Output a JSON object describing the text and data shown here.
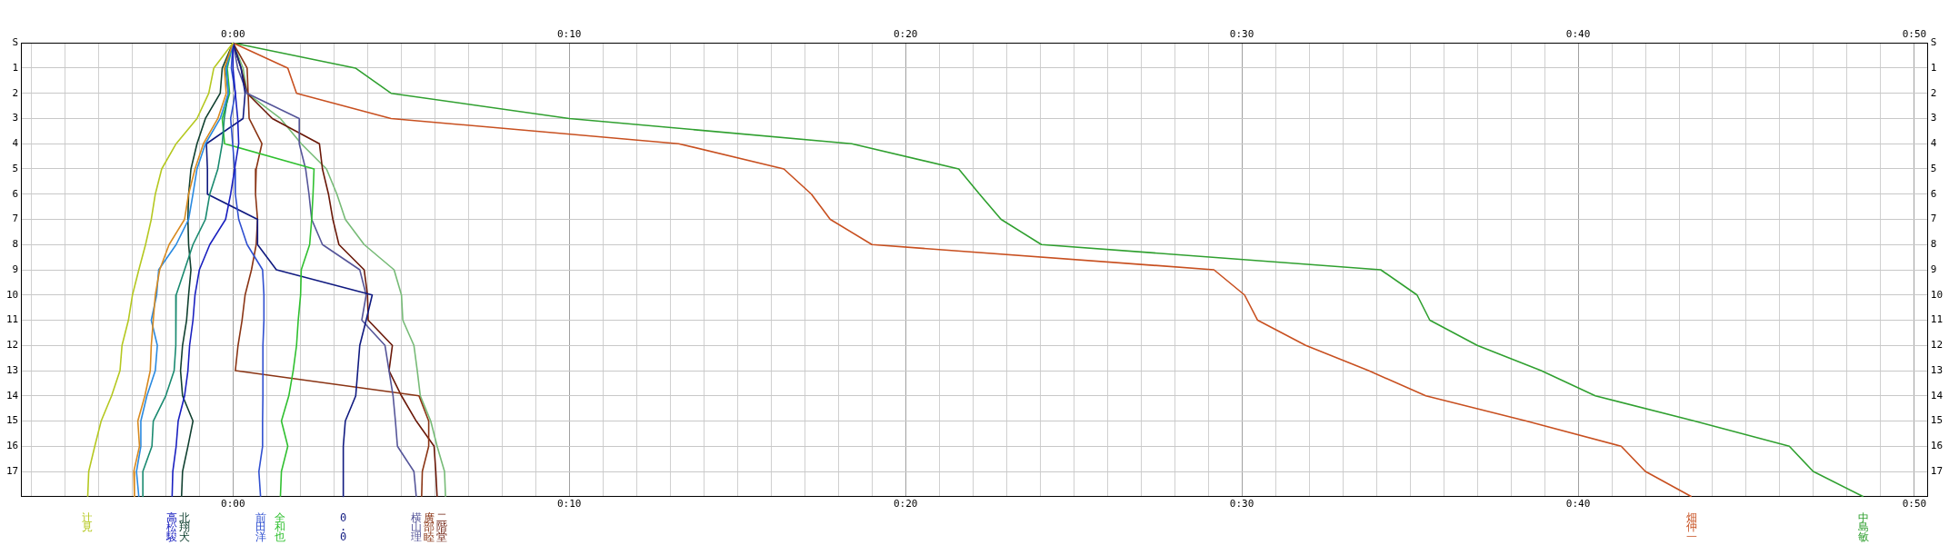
{
  "chart_data": {
    "type": "line",
    "orientation": "horizontal",
    "marker": "none",
    "line_style": "solid",
    "grid": true,
    "categories": [
      "S",
      "1",
      "2",
      "3",
      "4",
      "5",
      "6",
      "7",
      "8",
      "9",
      "10",
      "11",
      "12",
      "13",
      "14",
      "15",
      "16",
      "17",
      null
    ],
    "xlim": [
      -6.3,
      50.4
    ],
    "xticks": [
      {
        "value": -6,
        "label": null
      },
      {
        "value": -5,
        "label": null
      },
      {
        "value": -4,
        "label": null
      },
      {
        "value": -3,
        "label": null
      },
      {
        "value": -2,
        "label": null
      },
      {
        "value": -1,
        "label": null
      },
      {
        "value": 0,
        "label": "0:00"
      },
      {
        "value": 1,
        "label": null
      },
      {
        "value": 2,
        "label": null
      },
      {
        "value": 3,
        "label": null
      },
      {
        "value": 4,
        "label": null
      },
      {
        "value": 5,
        "label": null
      },
      {
        "value": 6,
        "label": null
      },
      {
        "value": 7,
        "label": null
      },
      {
        "value": 8,
        "label": null
      },
      {
        "value": 9,
        "label": null
      },
      {
        "value": 10,
        "label": "0:10"
      },
      {
        "value": 11,
        "label": null
      },
      {
        "value": 12,
        "label": null
      },
      {
        "value": 13,
        "label": null
      },
      {
        "value": 14,
        "label": null
      },
      {
        "value": 15,
        "label": null
      },
      {
        "value": 16,
        "label": null
      },
      {
        "value": 17,
        "label": null
      },
      {
        "value": 18,
        "label": null
      },
      {
        "value": 19,
        "label": null
      },
      {
        "value": 20,
        "label": "0:20"
      },
      {
        "value": 21,
        "label": null
      },
      {
        "value": 22,
        "label": null
      },
      {
        "value": 23,
        "label": null
      },
      {
        "value": 24,
        "label": null
      },
      {
        "value": 25,
        "label": null
      },
      {
        "value": 26,
        "label": null
      },
      {
        "value": 27,
        "label": null
      },
      {
        "value": 28,
        "label": null
      },
      {
        "value": 29,
        "label": null
      },
      {
        "value": 30,
        "label": "0:30"
      },
      {
        "value": 31,
        "label": null
      },
      {
        "value": 32,
        "label": null
      },
      {
        "value": 33,
        "label": null
      },
      {
        "value": 34,
        "label": null
      },
      {
        "value": 35,
        "label": null
      },
      {
        "value": 36,
        "label": null
      },
      {
        "value": 37,
        "label": null
      },
      {
        "value": 38,
        "label": null
      },
      {
        "value": 39,
        "label": null
      },
      {
        "value": 40,
        "label": "0:40"
      },
      {
        "value": 41,
        "label": null
      },
      {
        "value": 42,
        "label": null
      },
      {
        "value": 43,
        "label": null
      },
      {
        "value": 44,
        "label": null
      },
      {
        "value": 45,
        "label": null
      },
      {
        "value": 46,
        "label": null
      },
      {
        "value": 47,
        "label": null
      },
      {
        "value": 48,
        "label": null
      },
      {
        "value": 49,
        "label": null
      },
      {
        "value": 50,
        "label": "0:50"
      }
    ],
    "x2lim": [
      -6.3,
      50.4
    ],
    "x2ticks": [
      {
        "value": 0,
        "label": "0:00"
      },
      {
        "value": 10,
        "label": "0:10"
      },
      {
        "value": 20,
        "label": "0:20"
      },
      {
        "value": 30,
        "label": "0:30"
      },
      {
        "value": 40,
        "label": "0:40"
      },
      {
        "value": 50,
        "label": "0:50"
      }
    ],
    "series": [
      {
        "name": "辻見",
        "color": "#b5c820",
        "values": [
          0,
          -0.57,
          -0.72,
          -1.07,
          -1.69,
          -2.12,
          -2.31,
          -2.43,
          -2.6,
          -2.8,
          -2.99,
          -3.11,
          -3.3,
          -3.36,
          -3.61,
          -3.92,
          -4.11,
          -4.29,
          -4.32
        ]
      },
      {
        "color": "#d88a20",
        "values": [
          0,
          -0.26,
          -0.2,
          -0.45,
          -0.88,
          -1.13,
          -1.32,
          -1.44,
          -1.9,
          -2.18,
          -2.31,
          -2.37,
          -2.43,
          -2.46,
          -2.62,
          -2.83,
          -2.78,
          -2.95,
          -2.93
        ]
      },
      {
        "color": "#2a8ae0",
        "values": [
          0,
          -0.2,
          -0.14,
          -0.38,
          -0.82,
          -1.07,
          -1.19,
          -1.32,
          -1.69,
          -2.21,
          -2.27,
          -2.43,
          -2.25,
          -2.31,
          -2.56,
          -2.74,
          -2.74,
          -2.87,
          -2.8
        ]
      },
      {
        "color": "#1a8a70",
        "values": [
          0,
          -0.22,
          -0.14,
          -0.26,
          -0.32,
          -0.45,
          -0.69,
          -0.82,
          -1.19,
          -1.44,
          -1.69,
          -1.69,
          -1.71,
          -1.75,
          -2.0,
          -2.37,
          -2.41,
          -2.68,
          -2.68
        ]
      },
      {
        "name": "高松駿",
        "color": "#1a20c0",
        "values": [
          0,
          0,
          0.07,
          0.14,
          0.17,
          0.05,
          -0.07,
          -0.22,
          -0.69,
          -1.0,
          -1.13,
          -1.19,
          -1.29,
          -1.34,
          -1.44,
          -1.63,
          -1.69,
          -1.79,
          -1.81
        ]
      },
      {
        "name": "北翔犬",
        "color": "#104030",
        "values": [
          0,
          -0.32,
          -0.38,
          -0.82,
          -1.07,
          -1.25,
          -1.32,
          -1.34,
          -1.32,
          -1.25,
          -1.32,
          -1.38,
          -1.5,
          -1.56,
          -1.5,
          -1.19,
          -1.34,
          -1.5,
          -1.53
        ]
      },
      {
        "name": "前田洋",
        "color": "#3050d0",
        "values": [
          0,
          -0.05,
          0.07,
          -0.07,
          -0.01,
          0.05,
          0.07,
          0.17,
          0.42,
          0.88,
          0.92,
          0.92,
          0.89,
          0.89,
          0.89,
          0.88,
          0.88,
          0.77,
          0.82
        ]
      },
      {
        "name": "全和也",
        "color": "#30c030",
        "values": [
          0,
          -0.17,
          -0.1,
          -0.32,
          -0.25,
          2.41,
          2.38,
          2.34,
          2.28,
          2.03,
          2.01,
          1.94,
          1.89,
          1.79,
          1.66,
          1.44,
          1.63,
          1.44,
          1.41
        ]
      },
      {
        "name": "0.0",
        "color": "#101a80",
        "values": [
          0,
          0.24,
          0.36,
          0.3,
          -0.79,
          -0.76,
          -0.76,
          0.73,
          0.73,
          1.29,
          4.14,
          3.96,
          3.77,
          3.71,
          3.65,
          3.34,
          3.28,
          3.28,
          3.28
        ]
      },
      {
        "name": "横山理",
        "color": "#555599",
        "values": [
          0,
          0.14,
          0.42,
          1.97,
          1.97,
          2.16,
          2.26,
          2.34,
          2.66,
          3.77,
          3.96,
          3.83,
          4.52,
          4.64,
          4.76,
          4.83,
          4.89,
          5.38,
          5.45
        ]
      },
      {
        "name": "廣部睦",
        "color": "#8a3414",
        "values": [
          0,
          0.42,
          0.45,
          0.48,
          0.86,
          0.69,
          0.67,
          0.73,
          0.69,
          0.55,
          0.36,
          0.27,
          0.15,
          0.07,
          5.53,
          5.82,
          5.82,
          5.63,
          5.61
        ]
      },
      {
        "name": "二階堂",
        "color": "#6a1808",
        "values": [
          0,
          0.24,
          0.42,
          1.17,
          2.57,
          2.66,
          2.84,
          2.97,
          3.15,
          3.9,
          4.0,
          4.02,
          4.74,
          4.64,
          5.01,
          5.45,
          5.98,
          6.03,
          6.07
        ]
      },
      {
        "color": "#77bb77",
        "values": [
          0,
          0.3,
          0.42,
          1.41,
          2.03,
          2.78,
          3.09,
          3.34,
          3.9,
          4.79,
          5.01,
          5.05,
          5.38,
          5.48,
          5.57,
          5.88,
          6.07,
          6.29,
          6.32
        ]
      },
      {
        "name": "畑仲一",
        "color": "#c85020",
        "values": [
          0,
          1.63,
          1.89,
          4.7,
          13.25,
          16.38,
          17.2,
          17.76,
          19.0,
          29.17,
          30.08,
          30.47,
          31.9,
          33.77,
          35.47,
          38.46,
          41.28,
          42.0,
          43.37
        ]
      },
      {
        "name": "中島敏",
        "color": "#30a030",
        "values": [
          0,
          3.64,
          4.7,
          10.0,
          18.4,
          21.58,
          22.2,
          22.84,
          24.04,
          34.13,
          35.21,
          35.59,
          37.0,
          38.9,
          40.51,
          43.46,
          46.28,
          46.99,
          48.48
        ]
      }
    ]
  }
}
